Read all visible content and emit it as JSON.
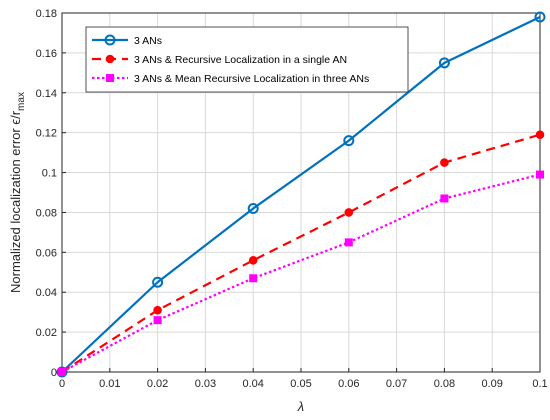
{
  "chart_data": {
    "type": "line",
    "xlabel": "λ",
    "ylabel_main": "Normalized localization error ",
    "ylabel_frac": "ϵ/r",
    "ylabel_sub": "max",
    "xlim": [
      0,
      0.1
    ],
    "ylim": [
      0,
      0.18
    ],
    "x_ticks": [
      "0",
      "0.01",
      "0.02",
      "0.03",
      "0.04",
      "0.05",
      "0.06",
      "0.07",
      "0.08",
      "0.09",
      "0.1"
    ],
    "y_ticks": [
      "0",
      "0.02",
      "0.04",
      "0.06",
      "0.08",
      "0.1",
      "0.12",
      "0.14",
      "0.16",
      "0.18"
    ],
    "grid": true,
    "legend_position": "top-left",
    "x": [
      0,
      0.02,
      0.04,
      0.06,
      0.08,
      0.1
    ],
    "series": [
      {
        "name": "3 ANs",
        "values": [
          0,
          0.045,
          0.082,
          0.116,
          0.155,
          0.178
        ],
        "color": "#0072BD",
        "line_style": "solid",
        "marker": "circle-open"
      },
      {
        "name": "3 ANs & Recursive Localization in a single AN",
        "values": [
          0,
          0.031,
          0.056,
          0.08,
          0.105,
          0.119
        ],
        "color": "#FF0000",
        "line_style": "dashed",
        "marker": "dot-filled"
      },
      {
        "name": "3 ANs & Mean Recursive Localization in three ANs",
        "values": [
          0,
          0.026,
          0.047,
          0.065,
          0.087,
          0.099
        ],
        "color": "#FF00FF",
        "line_style": "dotted",
        "marker": "square-filled"
      }
    ]
  }
}
